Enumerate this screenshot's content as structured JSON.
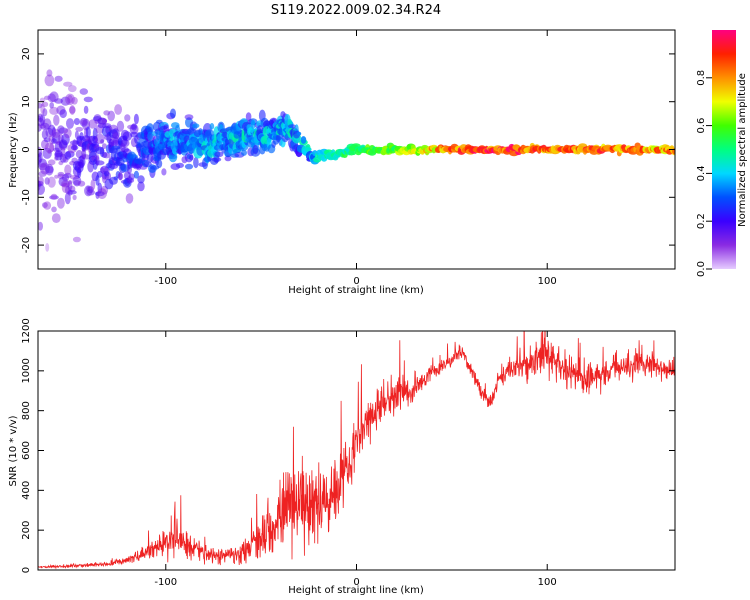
{
  "figure": {
    "title": "S119.2022.009.02.34.R24"
  },
  "chart_data": [
    {
      "type": "heatmap",
      "title": "",
      "xlabel": "Height of straight line (km)",
      "ylabel": "Frequency (Hz)",
      "xlim": [
        -167,
        167
      ],
      "ylim": [
        -25,
        25
      ],
      "x_ticks": [
        -100,
        0,
        100
      ],
      "y_ticks": [
        -20,
        -10,
        0,
        10,
        20
      ],
      "colorbar": {
        "label": "Normalized spectral amplitude",
        "range": [
          0,
          1
        ],
        "ticks": [
          0.0,
          0.2,
          0.4,
          0.6,
          0.8
        ],
        "colormap": [
          "#e6ccff",
          "#8a2be2",
          "#3a00ff",
          "#0050ff",
          "#00d8ff",
          "#00ff80",
          "#40ff00",
          "#f0ff00",
          "#ff9000",
          "#ff2000",
          "#ff0080"
        ]
      },
      "ridge": {
        "description": "spectral energy concentrated near 0 Hz; broad scatter below about -25 km, narrow line above",
        "points": [
          {
            "x": -160,
            "y_center": 0,
            "spread": 25,
            "amplitude": 0.15
          },
          {
            "x": -120,
            "y_center": -2,
            "spread": 12,
            "amplitude": 0.25
          },
          {
            "x": -100,
            "y_center": 2,
            "spread": 8,
            "amplitude": 0.35
          },
          {
            "x": -80,
            "y_center": 1,
            "spread": 6,
            "amplitude": 0.4
          },
          {
            "x": -50,
            "y_center": 3,
            "spread": 6,
            "amplitude": 0.4
          },
          {
            "x": -35,
            "y_center": 4,
            "spread": 5,
            "amplitude": 0.4
          },
          {
            "x": -22,
            "y_center": -2,
            "spread": 2,
            "amplitude": 0.45
          },
          {
            "x": 0,
            "y_center": 0,
            "spread": 1.5,
            "amplitude": 0.55
          },
          {
            "x": 30,
            "y_center": 0,
            "spread": 1,
            "amplitude": 0.7
          },
          {
            "x": 60,
            "y_center": 0,
            "spread": 1,
            "amplitude": 0.95
          },
          {
            "x": 100,
            "y_center": 0,
            "spread": 1,
            "amplitude": 0.9
          },
          {
            "x": 140,
            "y_center": 0,
            "spread": 1,
            "amplitude": 0.85
          },
          {
            "x": 165,
            "y_center": 0,
            "spread": 1,
            "amplitude": 0.8
          }
        ]
      }
    },
    {
      "type": "line",
      "title": "",
      "xlabel": "Height of straight line (km)",
      "ylabel": "SNR (10 * v/v)",
      "xlim": [
        -167,
        167
      ],
      "ylim": [
        0,
        1200
      ],
      "x_ticks": [
        -100,
        0,
        100
      ],
      "y_ticks": [
        0,
        200,
        400,
        600,
        800,
        1000,
        1200
      ],
      "series": [
        {
          "color": "#ee2222",
          "x": [
            -167,
            -150,
            -130,
            -120,
            -110,
            -100,
            -95,
            -90,
            -80,
            -70,
            -60,
            -50,
            -40,
            -30,
            -20,
            -10,
            0,
            10,
            20,
            30,
            40,
            50,
            55,
            60,
            65,
            70,
            75,
            80,
            90,
            100,
            110,
            120,
            130,
            140,
            150,
            160,
            167
          ],
          "values": [
            15,
            20,
            30,
            50,
            90,
            130,
            170,
            140,
            80,
            70,
            90,
            170,
            260,
            340,
            300,
            430,
            640,
            800,
            880,
            900,
            1000,
            1050,
            1100,
            1000,
            900,
            830,
            960,
            1000,
            1040,
            1080,
            1000,
            950,
            990,
            1020,
            1040,
            1010,
            1000
          ],
          "noise": [
            6,
            8,
            12,
            20,
            40,
            70,
            110,
            90,
            50,
            40,
            60,
            120,
            180,
            230,
            220,
            180,
            140,
            120,
            100,
            60,
            40,
            40,
            40,
            40,
            40,
            40,
            60,
            70,
            90,
            90,
            90,
            90,
            80,
            70,
            60,
            60,
            60
          ]
        }
      ]
    }
  ]
}
